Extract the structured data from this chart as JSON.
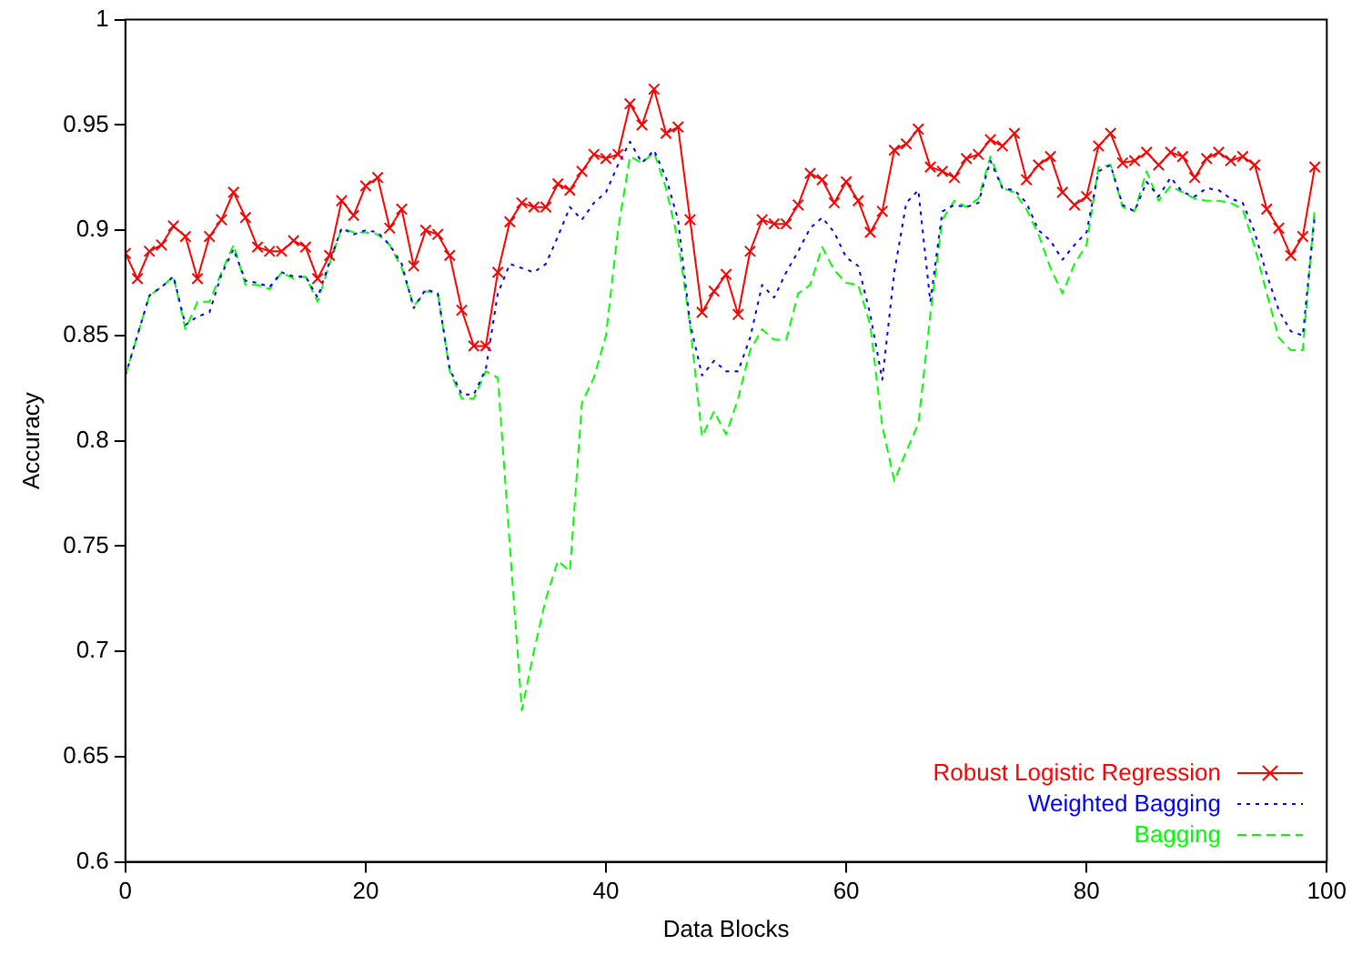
{
  "chart_data": {
    "type": "line",
    "xlabel": "Data Blocks",
    "ylabel": "Accuracy",
    "x": [
      0,
      1,
      2,
      3,
      4,
      5,
      6,
      7,
      8,
      9,
      10,
      11,
      12,
      13,
      14,
      15,
      16,
      17,
      18,
      19,
      20,
      21,
      22,
      23,
      24,
      25,
      26,
      27,
      28,
      29,
      30,
      31,
      32,
      33,
      34,
      35,
      36,
      37,
      38,
      39,
      40,
      41,
      42,
      43,
      44,
      45,
      46,
      47,
      48,
      49,
      50,
      51,
      52,
      53,
      54,
      55,
      56,
      57,
      58,
      59,
      60,
      61,
      62,
      63,
      64,
      65,
      66,
      67,
      68,
      69,
      70,
      71,
      72,
      73,
      74,
      75,
      76,
      77,
      78,
      79,
      80,
      81,
      82,
      83,
      84,
      85,
      86,
      87,
      88,
      89,
      90,
      91,
      92,
      93,
      94,
      95,
      96,
      97,
      98,
      99
    ],
    "xlim": [
      0,
      100
    ],
    "xticks": [
      0,
      20,
      40,
      60,
      80,
      100
    ],
    "ylim": [
      0.6,
      1
    ],
    "yticks": [
      0.6,
      0.65,
      0.7,
      0.75,
      0.8,
      0.85,
      0.9,
      0.95,
      1
    ],
    "grid": false,
    "legend": "bottom right",
    "series": [
      {
        "name": "Robust Logistic Regression",
        "color": "#ff0000",
        "marker": "cross",
        "line_style": "solid",
        "values": [
          0.889,
          0.877,
          0.89,
          0.893,
          0.902,
          0.897,
          0.877,
          0.897,
          0.905,
          0.918,
          0.906,
          0.892,
          0.89,
          0.89,
          0.895,
          0.892,
          0.877,
          0.888,
          0.914,
          0.907,
          0.921,
          0.925,
          0.901,
          0.91,
          0.883,
          0.9,
          0.898,
          0.888,
          0.862,
          0.845,
          0.845,
          0.88,
          0.904,
          0.913,
          0.911,
          0.911,
          0.922,
          0.919,
          0.928,
          0.936,
          0.934,
          0.936,
          0.96,
          0.95,
          0.967,
          0.946,
          0.949,
          0.905,
          0.861,
          0.871,
          0.879,
          0.86,
          0.89,
          0.905,
          0.903,
          0.903,
          0.912,
          0.927,
          0.924,
          0.913,
          0.923,
          0.914,
          0.899,
          0.909,
          0.938,
          0.941,
          0.948,
          0.93,
          0.928,
          0.925,
          0.934,
          0.936,
          0.943,
          0.94,
          0.946,
          0.924,
          0.931,
          0.935,
          0.918,
          0.912,
          0.916,
          0.94,
          0.946,
          0.932,
          0.933,
          0.937,
          0.931,
          0.937,
          0.935,
          0.925,
          0.934,
          0.937,
          0.933,
          0.935,
          0.931,
          0.91,
          0.901,
          0.888,
          0.897,
          0.93
        ]
      },
      {
        "name": "Weighted Bagging",
        "color": "#0000ff",
        "marker": "none",
        "line_style": "dotted",
        "values": [
          0.831,
          0.85,
          0.869,
          0.873,
          0.878,
          0.855,
          0.859,
          0.861,
          0.879,
          0.891,
          0.876,
          0.875,
          0.873,
          0.88,
          0.878,
          0.878,
          0.868,
          0.885,
          0.901,
          0.898,
          0.9,
          0.899,
          0.893,
          0.884,
          0.863,
          0.872,
          0.87,
          0.834,
          0.822,
          0.822,
          0.834,
          0.87,
          0.884,
          0.882,
          0.88,
          0.884,
          0.897,
          0.911,
          0.905,
          0.913,
          0.918,
          0.931,
          0.942,
          0.932,
          0.938,
          0.925,
          0.905,
          0.856,
          0.831,
          0.838,
          0.833,
          0.833,
          0.849,
          0.874,
          0.868,
          0.88,
          0.89,
          0.901,
          0.906,
          0.899,
          0.887,
          0.883,
          0.86,
          0.829,
          0.88,
          0.913,
          0.919,
          0.866,
          0.909,
          0.912,
          0.911,
          0.913,
          0.933,
          0.92,
          0.919,
          0.913,
          0.9,
          0.895,
          0.886,
          0.893,
          0.899,
          0.928,
          0.931,
          0.912,
          0.909,
          0.923,
          0.916,
          0.925,
          0.918,
          0.916,
          0.92,
          0.919,
          0.915,
          0.913,
          0.899,
          0.879,
          0.862,
          0.852,
          0.85,
          0.907
        ]
      },
      {
        "name": "Bagging",
        "color": "#00ff00",
        "marker": "none",
        "line_style": "dashed",
        "values": [
          0.831,
          0.85,
          0.869,
          0.873,
          0.878,
          0.853,
          0.866,
          0.866,
          0.88,
          0.893,
          0.874,
          0.874,
          0.872,
          0.88,
          0.877,
          0.878,
          0.866,
          0.884,
          0.901,
          0.899,
          0.899,
          0.898,
          0.893,
          0.882,
          0.864,
          0.871,
          0.87,
          0.833,
          0.82,
          0.82,
          0.833,
          0.83,
          0.75,
          0.672,
          0.7,
          0.725,
          0.743,
          0.738,
          0.818,
          0.83,
          0.85,
          0.9,
          0.935,
          0.932,
          0.937,
          0.92,
          0.895,
          0.855,
          0.802,
          0.814,
          0.803,
          0.82,
          0.843,
          0.853,
          0.848,
          0.848,
          0.87,
          0.874,
          0.892,
          0.881,
          0.875,
          0.874,
          0.855,
          0.807,
          0.781,
          0.795,
          0.808,
          0.86,
          0.905,
          0.914,
          0.911,
          0.915,
          0.935,
          0.92,
          0.918,
          0.91,
          0.898,
          0.882,
          0.87,
          0.884,
          0.893,
          0.93,
          0.931,
          0.911,
          0.909,
          0.928,
          0.914,
          0.921,
          0.918,
          0.915,
          0.914,
          0.914,
          0.913,
          0.91,
          0.892,
          0.87,
          0.849,
          0.843,
          0.843,
          0.911
        ]
      }
    ]
  }
}
